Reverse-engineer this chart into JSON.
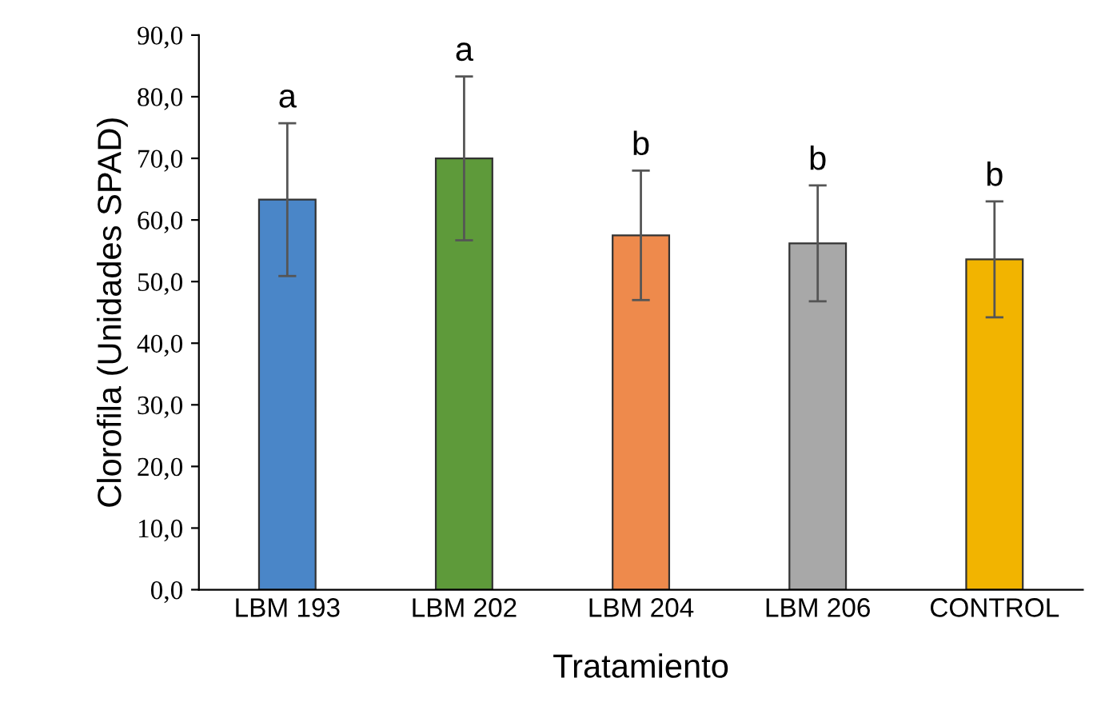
{
  "chart_data": {
    "type": "bar",
    "xlabel": "Tratamiento",
    "ylabel": "Clorofila (Unidades SPAD)",
    "categories": [
      "LBM 193",
      "LBM 202",
      "LBM 204",
      "LBM 206",
      "CONTROL"
    ],
    "values": [
      63.3,
      70.0,
      57.5,
      56.2,
      53.6
    ],
    "errors": [
      12.4,
      13.3,
      10.5,
      9.4,
      9.4
    ],
    "colors": [
      "#4a86c8",
      "#5e9a3a",
      "#ee8a4c",
      "#a8a8a8",
      "#f2b400"
    ],
    "ylim": [
      0,
      90
    ],
    "yticks": [
      {
        "value": 0,
        "label": "0,0"
      },
      {
        "value": 10,
        "label": "10,0"
      },
      {
        "value": 20,
        "label": "20,0"
      },
      {
        "value": 30,
        "label": "30,0"
      },
      {
        "value": 40,
        "label": "40,0"
      },
      {
        "value": 50,
        "label": "50,0"
      },
      {
        "value": 60,
        "label": "60,0"
      },
      {
        "value": 70,
        "label": "70,0"
      },
      {
        "value": 80,
        "label": "80,0"
      },
      {
        "value": 90,
        "label": "90,0"
      }
    ],
    "grid": false,
    "annotations": [
      {
        "text": "a",
        "x": "LBM 193",
        "y": 75.7
      },
      {
        "text": "a",
        "x": "LBM 202",
        "y": 83.3
      },
      {
        "text": "b",
        "x": "LBM 204",
        "y": 68.0
      },
      {
        "text": "b",
        "x": "LBM 206",
        "y": 65.6
      },
      {
        "text": "b",
        "x": "CONTROL",
        "y": 63.0
      }
    ]
  }
}
